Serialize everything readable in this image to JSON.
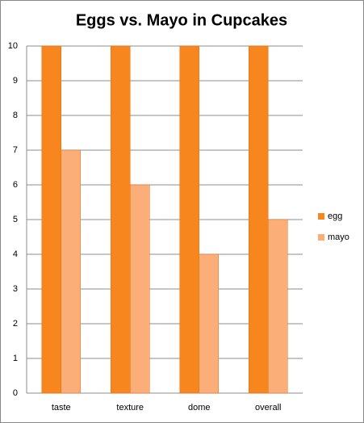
{
  "chart_data": {
    "type": "bar",
    "title": "Eggs vs. Mayo in Cupcakes",
    "categories": [
      "taste",
      "texture",
      "dome",
      "overall"
    ],
    "series": [
      {
        "name": "egg",
        "color": "#f7861e",
        "values": [
          10,
          10,
          10,
          10
        ]
      },
      {
        "name": "mayo",
        "color": "#fbae78",
        "values": [
          7,
          6,
          4,
          5
        ]
      }
    ],
    "ylim": [
      0,
      10
    ],
    "yticks": [
      0,
      1,
      2,
      3,
      4,
      5,
      6,
      7,
      8,
      9,
      10
    ],
    "grid": true,
    "legend": "right"
  }
}
